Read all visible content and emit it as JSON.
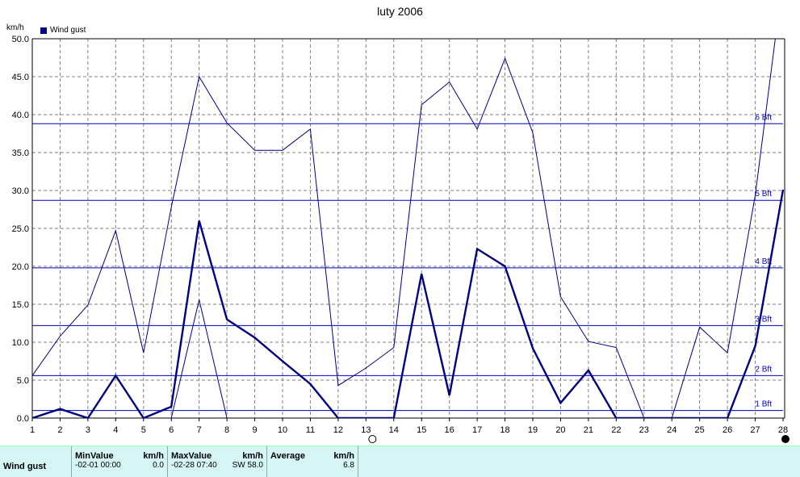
{
  "title": "luty 2006",
  "unit_label": "km/h",
  "legend_label": "Wind gust",
  "colors": {
    "series": "#000080",
    "grid": "#808080",
    "beaufort": "#0000c0"
  },
  "chart_data": {
    "type": "line",
    "title": "luty 2006",
    "ylabel": "km/h",
    "ylim": [
      0,
      50
    ],
    "yticks": [
      "0.0",
      "5.0",
      "10.0",
      "15.0",
      "20.0",
      "25.0",
      "30.0",
      "35.0",
      "40.0",
      "45.0",
      "50.0"
    ],
    "x": [
      1,
      2,
      3,
      4,
      5,
      6,
      7,
      8,
      9,
      10,
      11,
      12,
      13,
      14,
      15,
      16,
      17,
      18,
      19,
      20,
      21,
      22,
      23,
      24,
      25,
      26,
      27,
      28
    ],
    "grid": true,
    "series": [
      {
        "name": "Wind gust",
        "style": "thick",
        "values": [
          0,
          1.2,
          0,
          5.6,
          0,
          1.5,
          26.0,
          13.0,
          10.6,
          7.5,
          4.5,
          0,
          0,
          0,
          19.0,
          3.0,
          22.3,
          20.0,
          9.2,
          2.0,
          6.3,
          0,
          0,
          0,
          0,
          0,
          9.5,
          30.1
        ]
      },
      {
        "style": "thin",
        "values": [
          5.6,
          10.8,
          14.9,
          24.7,
          8.6,
          27.8,
          45.0,
          38.9,
          35.3,
          35.3,
          38.1,
          4.3,
          6.6,
          9.3,
          41.3,
          44.3,
          38.1,
          47.4,
          37.6,
          16.0,
          10.1,
          9.3,
          0,
          0,
          12.0,
          8.6,
          29.4,
          58.0
        ]
      },
      {
        "style": "thin",
        "values": [
          null,
          null,
          null,
          null,
          null,
          0,
          15.6,
          0,
          null,
          null,
          null,
          null,
          null,
          null,
          null,
          null,
          null,
          null,
          null,
          null,
          null,
          null,
          null,
          null,
          null,
          null,
          null,
          null
        ]
      }
    ],
    "beaufort_lines": [
      {
        "label": "1 Bft",
        "value": 1.0
      },
      {
        "label": "2 Bft",
        "value": 5.6
      },
      {
        "label": "3 Bft",
        "value": 12.2
      },
      {
        "label": "4 Bft",
        "value": 19.8
      },
      {
        "label": "5 Bft",
        "value": 28.7
      },
      {
        "label": "6 Bft",
        "value": 38.8
      }
    ]
  },
  "stats": {
    "series_label": "Wind gust",
    "min_header": "MinValue",
    "min_unit": "km/h",
    "min_date": "-02-01  00:00",
    "min_value": "0.0",
    "max_header": "MaxValue",
    "max_unit": "km/h",
    "max_date": "-02-28  07:40",
    "max_dir_value": "SW  58.0",
    "avg_header": "Average",
    "avg_unit": "km/h",
    "avg_value": "6.8"
  }
}
